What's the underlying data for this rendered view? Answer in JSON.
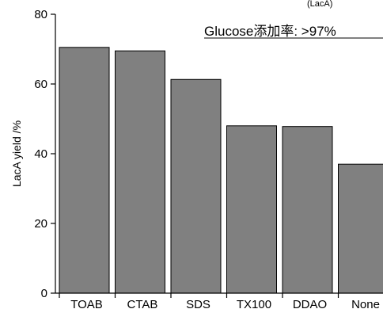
{
  "chart_data": {
    "type": "bar",
    "categories": [
      "TOAB",
      "CTAB",
      "SDS",
      "TX100",
      "DDAO",
      "None"
    ],
    "values": [
      70.5,
      69.5,
      61.3,
      48.0,
      47.8,
      37.0
    ],
    "ylabel": "LacA yield /%",
    "ylim": [
      0,
      80
    ],
    "yticks": [
      0,
      20,
      40,
      60,
      80
    ],
    "annotation": "Glucose添加率: >97%",
    "top_clipped_text": "(LacA)",
    "bar_color": "#808080",
    "grid": false
  }
}
